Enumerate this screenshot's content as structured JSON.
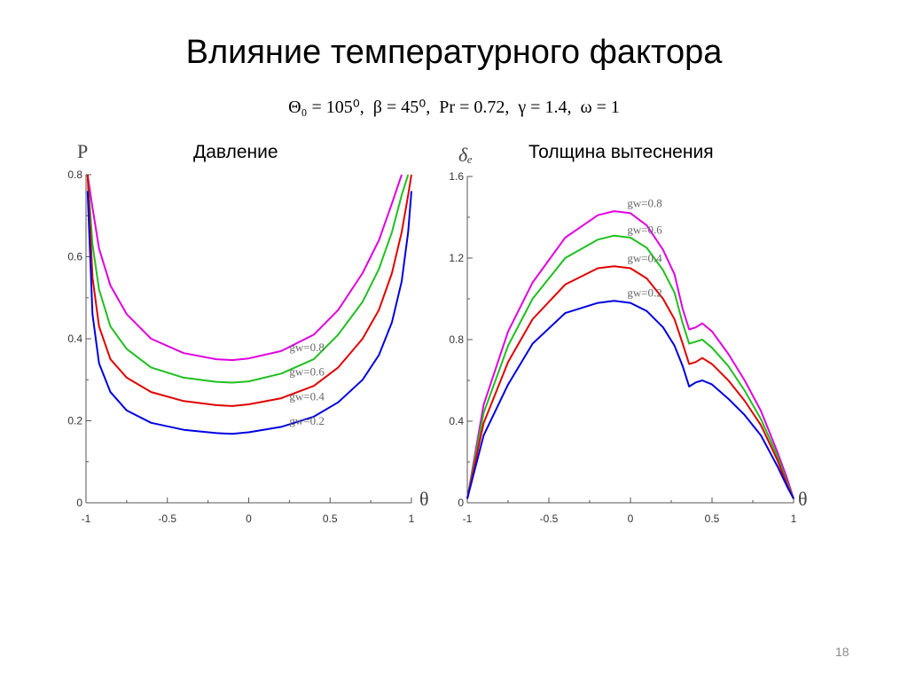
{
  "slide": {
    "title": "Влияние температурного фактора",
    "params_text": "Θ₀ = 105⁰,  β = 45⁰,  Pr = 0.72,  γ = 1.4,  ω = 1",
    "page_number": "18"
  },
  "chart_data": [
    {
      "type": "line",
      "title": "Давление",
      "ylabel": "P",
      "xlabel": "θ",
      "xlim": [
        -1,
        1
      ],
      "ylim": [
        0,
        0.8
      ],
      "xticks": [
        "-1",
        "-0.5",
        "0",
        "0.5",
        "1"
      ],
      "yticks": [
        "0",
        "0.2",
        "0.4",
        "0.6",
        "0.8"
      ],
      "x": [
        -0.99,
        -0.96,
        -0.92,
        -0.85,
        -0.75,
        -0.6,
        -0.4,
        -0.2,
        -0.1,
        0.0,
        0.2,
        0.4,
        0.55,
        0.7,
        0.8,
        0.88,
        0.94,
        0.98,
        1.0
      ],
      "series": [
        {
          "name": "gw=0.8",
          "color": "#e000e0",
          "values": [
            0.8,
            0.72,
            0.62,
            0.53,
            0.46,
            0.4,
            0.365,
            0.35,
            0.348,
            0.352,
            0.37,
            0.41,
            0.47,
            0.56,
            0.64,
            0.73,
            0.8,
            null,
            null
          ]
        },
        {
          "name": "gw=0.6",
          "color": "#1fbf1f",
          "values": [
            0.8,
            0.63,
            0.52,
            0.43,
            0.375,
            0.33,
            0.305,
            0.295,
            0.293,
            0.296,
            0.315,
            0.35,
            0.41,
            0.49,
            0.57,
            0.66,
            0.75,
            0.8,
            null
          ]
        },
        {
          "name": "gw=0.4",
          "color": "#e00000",
          "values": [
            0.8,
            0.55,
            0.43,
            0.35,
            0.305,
            0.27,
            0.248,
            0.238,
            0.236,
            0.24,
            0.255,
            0.285,
            0.33,
            0.4,
            0.47,
            0.56,
            0.66,
            0.75,
            0.8
          ]
        },
        {
          "name": "gw=0.2",
          "color": "#0000e0",
          "values": [
            0.76,
            0.46,
            0.34,
            0.27,
            0.225,
            0.195,
            0.178,
            0.17,
            0.168,
            0.172,
            0.185,
            0.21,
            0.245,
            0.3,
            0.36,
            0.44,
            0.54,
            0.66,
            0.76
          ]
        }
      ],
      "legend_labels": [
        "gw=0.8",
        "gw=0.6",
        "gw=0.4",
        "gw=0.2"
      ],
      "grid": false
    },
    {
      "type": "line",
      "title": "Толщина вытеснения",
      "ylabel": "δₑ",
      "xlabel": "θ",
      "xlim": [
        -1,
        1
      ],
      "ylim": [
        0,
        1.6
      ],
      "xticks": [
        "-1",
        "-0.5",
        "0",
        "0.5",
        "1"
      ],
      "yticks": [
        "0",
        "0.4",
        "0.8",
        "1.2",
        "1.6"
      ],
      "x": [
        -1.0,
        -0.9,
        -0.75,
        -0.6,
        -0.4,
        -0.2,
        -0.1,
        0.0,
        0.1,
        0.2,
        0.27,
        0.32,
        0.36,
        0.4,
        0.44,
        0.5,
        0.6,
        0.7,
        0.8,
        0.9,
        0.96,
        1.0
      ],
      "series": [
        {
          "name": "gw=0.8",
          "color": "#e000e0",
          "values": [
            0.02,
            0.48,
            0.84,
            1.08,
            1.3,
            1.41,
            1.43,
            1.42,
            1.36,
            1.24,
            1.12,
            0.95,
            0.85,
            0.86,
            0.88,
            0.84,
            0.73,
            0.6,
            0.45,
            0.25,
            0.12,
            0.02
          ]
        },
        {
          "name": "gw=0.6",
          "color": "#1fbf1f",
          "values": [
            0.02,
            0.44,
            0.77,
            1.0,
            1.2,
            1.29,
            1.31,
            1.3,
            1.25,
            1.14,
            1.03,
            0.88,
            0.78,
            0.79,
            0.8,
            0.76,
            0.67,
            0.55,
            0.41,
            0.23,
            0.1,
            0.02
          ]
        },
        {
          "name": "gw=0.4",
          "color": "#e00000",
          "values": [
            0.02,
            0.39,
            0.69,
            0.9,
            1.07,
            1.15,
            1.16,
            1.15,
            1.1,
            1.0,
            0.9,
            0.78,
            0.68,
            0.69,
            0.71,
            0.68,
            0.6,
            0.5,
            0.38,
            0.21,
            0.09,
            0.02
          ]
        },
        {
          "name": "gw=0.2",
          "color": "#0000e0",
          "values": [
            0.02,
            0.33,
            0.58,
            0.78,
            0.93,
            0.98,
            0.99,
            0.98,
            0.94,
            0.86,
            0.77,
            0.67,
            0.57,
            0.59,
            0.6,
            0.58,
            0.51,
            0.43,
            0.33,
            0.18,
            0.08,
            0.02
          ]
        }
      ],
      "legend_labels": [
        "gw=0.8",
        "gw=0.6",
        "gw=0.4",
        "gw=0.2"
      ],
      "grid": false
    }
  ]
}
